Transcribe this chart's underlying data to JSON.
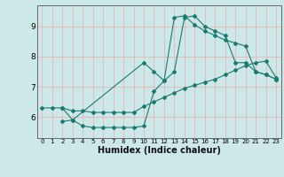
{
  "title": "",
  "xlabel": "Humidex (Indice chaleur)",
  "background_color": "#cce8e8",
  "grid_color": "#e8b4b4",
  "line_color": "#1a7a6e",
  "xlim": [
    -0.5,
    23.5
  ],
  "ylim": [
    5.3,
    9.7
  ],
  "yticks": [
    6,
    7,
    8,
    9
  ],
  "xticks": [
    0,
    1,
    2,
    3,
    4,
    5,
    6,
    7,
    8,
    9,
    10,
    11,
    12,
    13,
    14,
    15,
    16,
    17,
    18,
    19,
    20,
    21,
    22,
    23
  ],
  "line1_x": [
    0,
    1,
    2,
    3,
    4,
    5,
    6,
    7,
    8,
    9,
    10,
    11,
    12,
    13,
    14,
    15,
    16,
    17,
    18,
    19,
    20,
    21,
    22,
    23
  ],
  "line1_y": [
    6.3,
    6.3,
    6.3,
    6.2,
    6.2,
    6.15,
    6.15,
    6.15,
    6.15,
    6.15,
    6.35,
    6.5,
    6.65,
    6.8,
    6.95,
    7.05,
    7.15,
    7.25,
    7.4,
    7.55,
    7.7,
    7.8,
    7.85,
    7.3
  ],
  "line2_x": [
    2,
    3,
    4,
    5,
    6,
    7,
    8,
    9,
    10,
    11,
    12,
    13,
    14,
    15,
    16,
    17,
    18,
    19,
    20,
    21,
    22,
    23
  ],
  "line2_y": [
    5.85,
    5.9,
    5.7,
    5.65,
    5.65,
    5.65,
    5.65,
    5.65,
    5.7,
    6.85,
    7.2,
    7.5,
    9.3,
    9.35,
    9.0,
    8.85,
    8.7,
    7.8,
    7.8,
    7.5,
    7.4,
    7.25
  ],
  "line3_x": [
    2,
    3,
    10,
    11,
    12,
    13,
    14,
    15,
    16,
    17,
    18,
    19,
    20,
    21,
    22,
    23
  ],
  "line3_y": [
    6.3,
    5.9,
    7.8,
    7.5,
    7.2,
    9.3,
    9.35,
    9.05,
    8.85,
    8.7,
    8.55,
    8.45,
    8.35,
    7.5,
    7.4,
    7.25
  ]
}
